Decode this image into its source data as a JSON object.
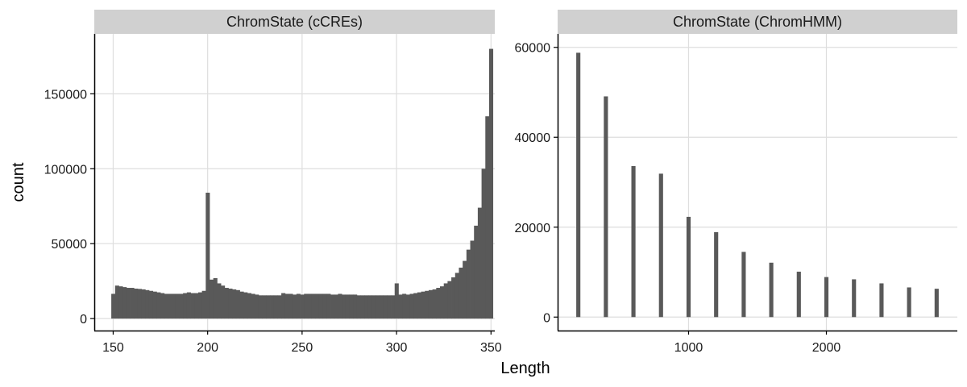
{
  "chart_data": {
    "type": "bar",
    "title": "",
    "xlabel": "Length",
    "ylabel": "count",
    "grid": true,
    "colors": {
      "bar": "#595959",
      "strip": "#d0d0d0",
      "grid": "#dedede",
      "axis": "#000000"
    },
    "panels": [
      {
        "name": "ChromState (cCREs)",
        "xlim": [
          140,
          352
        ],
        "ylim": [
          -8000,
          190000
        ],
        "x_ticks": [
          150,
          200,
          250,
          300,
          350
        ],
        "y_ticks": [
          0,
          50000,
          100000,
          150000
        ],
        "x_tick_labels": [
          "150",
          "200",
          "250",
          "300",
          "350"
        ],
        "y_tick_labels": [
          "0",
          "50000",
          "100000",
          "150000"
        ],
        "bin_width": 2,
        "x": [
          150,
          152,
          154,
          156,
          158,
          160,
          162,
          164,
          166,
          168,
          170,
          172,
          174,
          176,
          178,
          180,
          182,
          184,
          186,
          188,
          190,
          192,
          194,
          196,
          198,
          200,
          202,
          204,
          206,
          208,
          210,
          212,
          214,
          216,
          218,
          220,
          222,
          224,
          226,
          228,
          230,
          232,
          234,
          236,
          238,
          240,
          242,
          244,
          246,
          248,
          250,
          252,
          254,
          256,
          258,
          260,
          262,
          264,
          266,
          268,
          270,
          272,
          274,
          276,
          278,
          280,
          282,
          284,
          286,
          288,
          290,
          292,
          294,
          296,
          298,
          300,
          302,
          304,
          306,
          308,
          310,
          312,
          314,
          316,
          318,
          320,
          322,
          324,
          326,
          328,
          330,
          332,
          334,
          336,
          338,
          340,
          342,
          344,
          346,
          348,
          350
        ],
        "values": [
          16500,
          22000,
          21500,
          21000,
          20500,
          20500,
          20000,
          19800,
          19500,
          19000,
          18500,
          18000,
          17500,
          17000,
          16500,
          16500,
          16500,
          16500,
          16500,
          17000,
          17500,
          17000,
          17000,
          17500,
          18500,
          84000,
          26000,
          27000,
          23500,
          22000,
          20500,
          20000,
          19500,
          19000,
          18000,
          17500,
          17000,
          16500,
          16000,
          15500,
          15500,
          15500,
          15500,
          15500,
          15500,
          17000,
          16500,
          16500,
          16000,
          16500,
          16000,
          16500,
          16500,
          16500,
          16500,
          16500,
          16500,
          16500,
          16000,
          16000,
          16500,
          16000,
          16000,
          16000,
          16000,
          15500,
          15500,
          15500,
          15500,
          15500,
          15500,
          15500,
          15500,
          15500,
          15500,
          23500,
          16000,
          16500,
          16000,
          16500,
          17000,
          17500,
          18000,
          18500,
          19000,
          19500,
          20500,
          21500,
          23500,
          25000,
          27500,
          30500,
          34000,
          38500,
          46000,
          52000,
          62000,
          74000,
          100000,
          135000,
          180000
        ]
      },
      {
        "name": "ChromState (ChromHMM)",
        "xlim": [
          50,
          2950
        ],
        "ylim": [
          -3000,
          63000
        ],
        "x_ticks": [
          1000,
          2000
        ],
        "y_ticks": [
          0,
          20000,
          40000,
          60000
        ],
        "x_tick_labels": [
          "1000",
          "2000"
        ],
        "y_tick_labels": [
          "0",
          "20000",
          "40000",
          "60000"
        ],
        "bin_width": 30,
        "x": [
          200,
          400,
          600,
          800,
          1000,
          1200,
          1400,
          1600,
          1800,
          2000,
          2200,
          2400,
          2600,
          2800
        ],
        "values": [
          58800,
          49100,
          33600,
          31900,
          22300,
          18900,
          14500,
          12100,
          10100,
          8900,
          8400,
          7500,
          6600,
          6300
        ]
      }
    ]
  }
}
